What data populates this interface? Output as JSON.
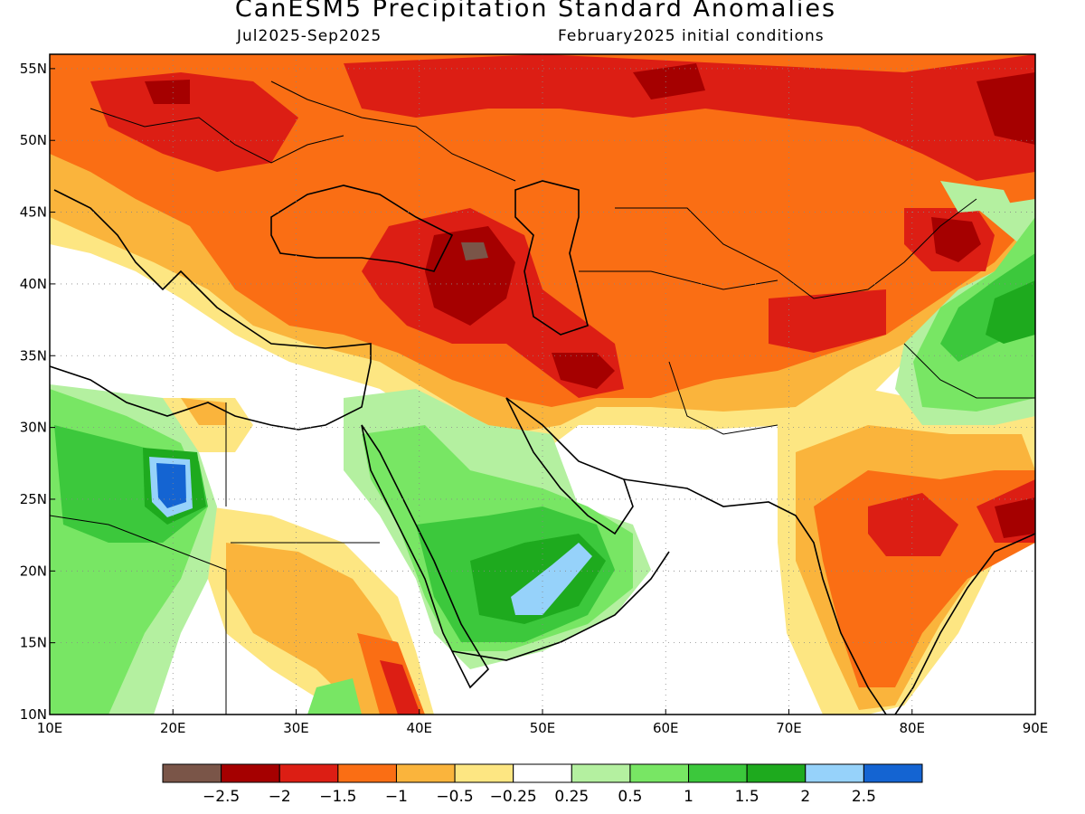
{
  "header": {
    "title": "CanESM5 Precipitation Standard Anomalies",
    "period": "Jul2025-Sep2025",
    "init": "February2025 initial conditions"
  },
  "map": {
    "lon_range": [
      10,
      90
    ],
    "lat_range": [
      10,
      56
    ],
    "lon_labels": [
      "10E",
      "20E",
      "30E",
      "40E",
      "50E",
      "60E",
      "70E",
      "80E",
      "90E"
    ],
    "lat_labels": [
      "10N",
      "15N",
      "20N",
      "25N",
      "30N",
      "35N",
      "40N",
      "45N",
      "50N",
      "55N"
    ],
    "colors": {
      "lt_-2.5": "#7a5548",
      "-2.5_-2": "#a50000",
      "-2_-1.5": "#dc1e14",
      "-1.5_-1": "#fa6e14",
      "-1_-0.5": "#fab43c",
      "-0.5_-0.25": "#fde682",
      "near_zero": "#ffffff",
      "0.25_0.5": "#b4f0a0",
      "0.5_1": "#78e664",
      "1_1.5": "#3cc83c",
      "1.5_2": "#1eaa1e",
      "2_2.5": "#96d2fa",
      "gt_2.5": "#1464d2"
    }
  },
  "colorbar": {
    "labels": [
      "−2.5",
      "−2",
      "−1.5",
      "−1",
      "−0.5",
      "−0.25",
      "0.25",
      "0.5",
      "1",
      "1.5",
      "2",
      "2.5"
    ],
    "colors": [
      "#7a5548",
      "#a50000",
      "#dc1e14",
      "#fa6e14",
      "#fab43c",
      "#fde682",
      "#ffffff",
      "#b4f0a0",
      "#78e664",
      "#3cc83c",
      "#1eaa1e",
      "#96d2fa",
      "#1464d2"
    ]
  }
}
